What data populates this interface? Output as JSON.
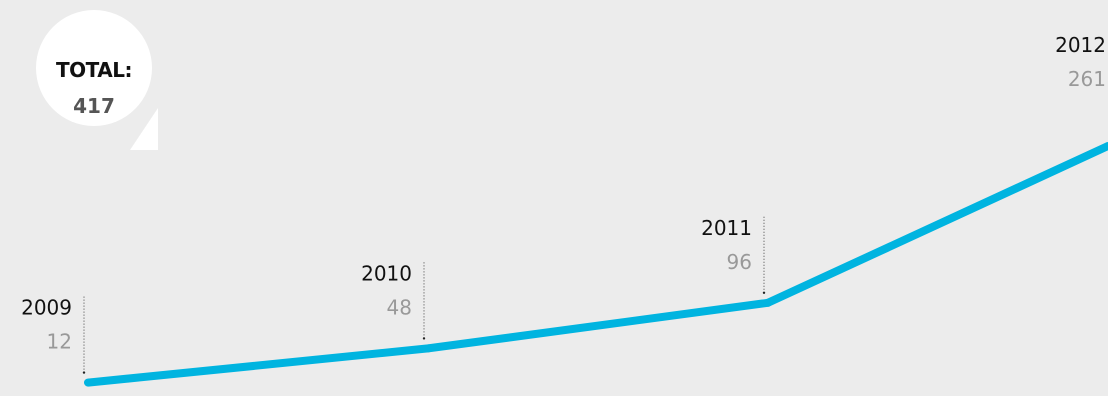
{
  "summary": {
    "label": "TOTAL:",
    "value": "417"
  },
  "colors": {
    "line": "#00b4e0",
    "background": "#ececec",
    "bubble": "#ffffff"
  },
  "chart_data": {
    "type": "line",
    "categories": [
      "2009",
      "2010",
      "2011",
      "2012"
    ],
    "values": [
      12,
      48,
      96,
      261
    ],
    "title": "",
    "xlabel": "",
    "ylabel": "",
    "grid": false,
    "legend": "none"
  }
}
